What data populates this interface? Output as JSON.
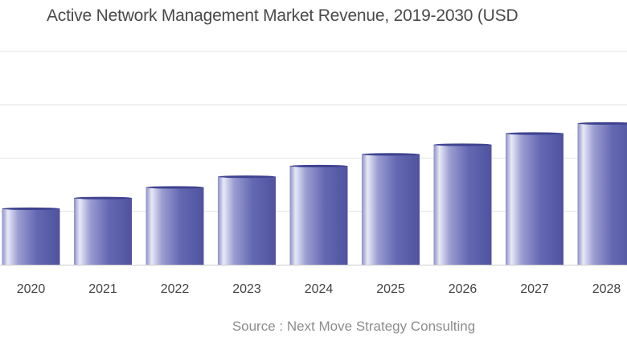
{
  "chart_data": {
    "type": "bar",
    "title": "Active Network Management Market Revenue, 2019-2030 (USD",
    "source": "Source : Next Move Strategy Consulting",
    "categories": [
      "2020",
      "2021",
      "2022",
      "2023",
      "2024",
      "2025",
      "2026",
      "2027",
      "2028"
    ],
    "values": [
      1.05,
      1.25,
      1.45,
      1.65,
      1.85,
      2.07,
      2.25,
      2.46,
      2.65
    ],
    "ylim": [
      0,
      4
    ],
    "grid": true,
    "legend": "none",
    "bar_color": "#5b5fa8",
    "bar_highlight": "#d6d7ee"
  }
}
